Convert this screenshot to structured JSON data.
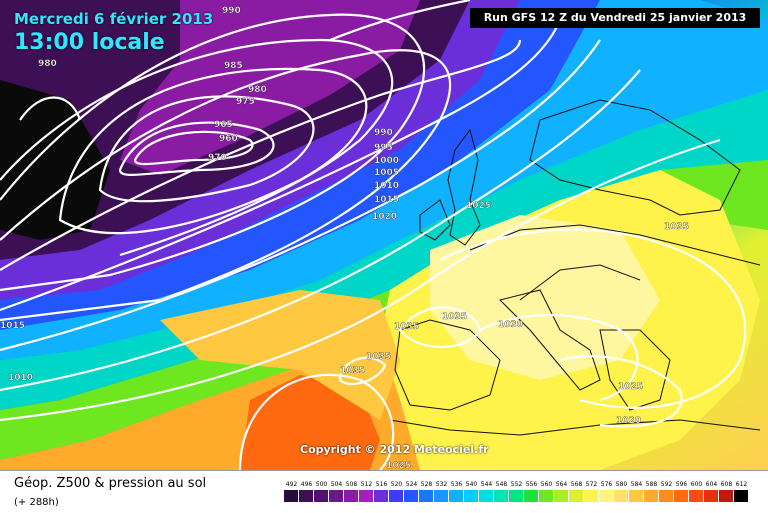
{
  "header": {
    "date": "Mercredi 6 février 2013",
    "time": "13:00 locale",
    "run": "Run GFS 12 Z du Vendredi 25 janvier 2013"
  },
  "copyright": "Copyright © 2012 Meteociel.fr",
  "footer": {
    "title": "Géop. Z500 & pression au sol",
    "subtitle": "(+ 288h)"
  },
  "isobar_labels": [
    "990",
    "980",
    "985",
    "980",
    "975",
    "965",
    "960",
    "970",
    "990",
    "995",
    "1000",
    "1005",
    "1010",
    "1015",
    "1020",
    "1025",
    "1035",
    "1035",
    "1030",
    "1035",
    "1035",
    "1025",
    "1020",
    "1015",
    "1010",
    "1025"
  ],
  "legend": {
    "values": [
      "492",
      "496",
      "500",
      "504",
      "508",
      "512",
      "516",
      "520",
      "524",
      "528",
      "532",
      "536",
      "540",
      "544",
      "548",
      "552",
      "556",
      "560",
      "564",
      "568",
      "572",
      "576",
      "580",
      "584",
      "588",
      "592",
      "596",
      "600",
      "604",
      "608",
      "612"
    ],
    "colors": [
      "#2a0b3d",
      "#3d0f55",
      "#52136f",
      "#6a1789",
      "#8a1ca3",
      "#a81fc0",
      "#6a2fd9",
      "#3f3bff",
      "#2456ff",
      "#1a78ff",
      "#1a96ff",
      "#10b2ff",
      "#00ccff",
      "#00e0e0",
      "#00e6b0",
      "#00e680",
      "#20e040",
      "#6ee620",
      "#a8ee20",
      "#dff030",
      "#fff24a",
      "#fff480",
      "#ffe06a",
      "#ffc840",
      "#ffaa2a",
      "#ff8c1a",
      "#ff6a10",
      "#ff4a10",
      "#e63010",
      "#c01a10",
      "#000000"
    ]
  }
}
